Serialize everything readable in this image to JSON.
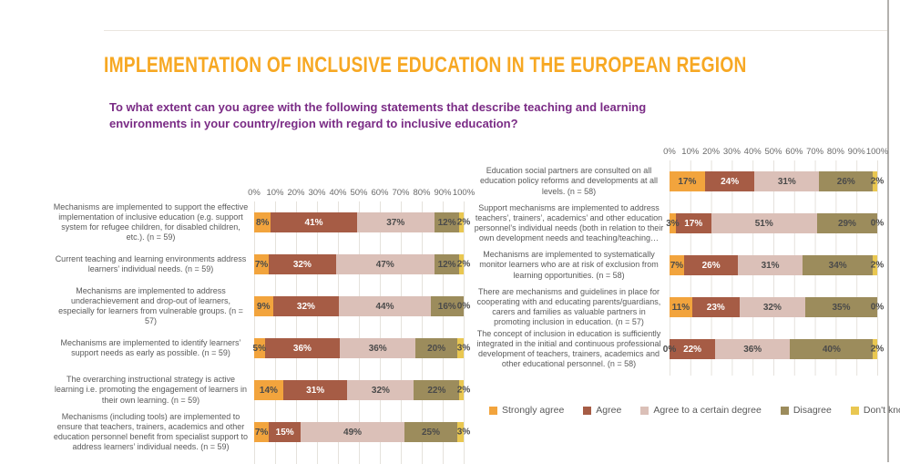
{
  "page": {
    "title": "IMPLEMENTATION OF INCLUSIVE EDUCATION IN THE EUROPEAN REGION",
    "subtitle": "To what extent can you agree with the following statements that describe teaching and learning environments in your country/region with regard to inclusive education?"
  },
  "colors": {
    "title": "#F7A823",
    "subtitle": "#7A2B85",
    "series": [
      "#F2A43D",
      "#A65C45",
      "#DBC0B8",
      "#9C8C5C",
      "#E9C751"
    ],
    "data_label_dark": "#4A4A4A",
    "data_label_light": "#FFFFFF",
    "axis_text": "#6A6A6A",
    "gridline": "#E5E2DC"
  },
  "chart_data": {
    "type": "bar",
    "subtype": "stacked-horizontal-100pct",
    "title": "IMPLEMENTATION OF INCLUSIVE EDUCATION IN THE EUROPEAN REGION",
    "question": "To what extent can you agree with the following statements that describe teaching and learning environments in your country/region with regard to inclusive education?",
    "axis_ticks": [
      "0%",
      "10%",
      "20%",
      "30%",
      "40%",
      "50%",
      "60%",
      "70%",
      "80%",
      "90%",
      "100%"
    ],
    "xlim": [
      0,
      100
    ],
    "grid": true,
    "axis_position": "top",
    "legend_position": "bottom",
    "legend": [
      "Strongly agree",
      "Agree",
      "Agree  to a certain degree",
      "Disagree",
      "Don't know/not applicable"
    ],
    "panels": [
      {
        "name": "left-panel",
        "categories": [
          "Mechanisms are implemented to support the effective implementation of inclusive education (e.g. support system for refugee children, for disabled children, etc.). (n = 59)",
          "Current teaching and learning environments address learners’ individual needs. (n = 59)",
          "Mechanisms are implemented to address underachievement and drop-out of learners, especially for learners from vulnerable groups. (n = 57)",
          "Mechanisms are implemented to identify learners’ support needs as early as possible. (n = 59)",
          "The overarching instructional strategy is active learning i.e. promoting the engagement of learners in their own learning. (n = 59)",
          "Mechanisms (including tools) are implemented to ensure that teachers, trainers, academics and other education personnel benefit from specialist support to address learners’ individual needs. (n = 59)"
        ],
        "series": [
          {
            "name": "Strongly agree",
            "values": [
              8,
              7,
              9,
              5,
              14,
              7
            ]
          },
          {
            "name": "Agree",
            "values": [
              41,
              32,
              32,
              36,
              31,
              15
            ]
          },
          {
            "name": "Agree to a certain degree",
            "values": [
              37,
              47,
              44,
              36,
              32,
              49
            ]
          },
          {
            "name": "Disagree",
            "values": [
              12,
              12,
              16,
              20,
              22,
              25
            ]
          },
          {
            "name": "Don't know/not applicable",
            "values": [
              2,
              2,
              0,
              3,
              2,
              3
            ]
          }
        ]
      },
      {
        "name": "right-panel",
        "categories": [
          "Education social partners are consulted on all education policy reforms and developments at all levels. (n = 58)",
          "Support mechanisms are implemented to address teachers’, trainers’, academics’ and other education personnel’s individual needs (both in relation to their own development needs and teaching/teaching…",
          "Mechanisms are implemented to systematically monitor learners who are at risk of exclusion from learning opportunities. (n = 58)",
          "There are mechanisms and guidelines in place for cooperating with and educating parents/guardians, carers and families as valuable partners in promoting inclusion in education. (n = 57)",
          "The concept of inclusion in education is sufficiently integrated in the initial and continuous professional development of teachers, trainers, academics and other educational personnel.  (n = 58)"
        ],
        "series": [
          {
            "name": "Strongly agree",
            "values": [
              17,
              3,
              7,
              11,
              0
            ]
          },
          {
            "name": "Agree",
            "values": [
              24,
              17,
              26,
              23,
              22
            ]
          },
          {
            "name": "Agree to a certain degree",
            "values": [
              31,
              51,
              31,
              32,
              36
            ]
          },
          {
            "name": "Disagree",
            "values": [
              26,
              29,
              34,
              35,
              40
            ]
          },
          {
            "name": "Don't know/not applicable",
            "values": [
              2,
              0,
              2,
              0,
              2
            ]
          }
        ]
      }
    ]
  }
}
